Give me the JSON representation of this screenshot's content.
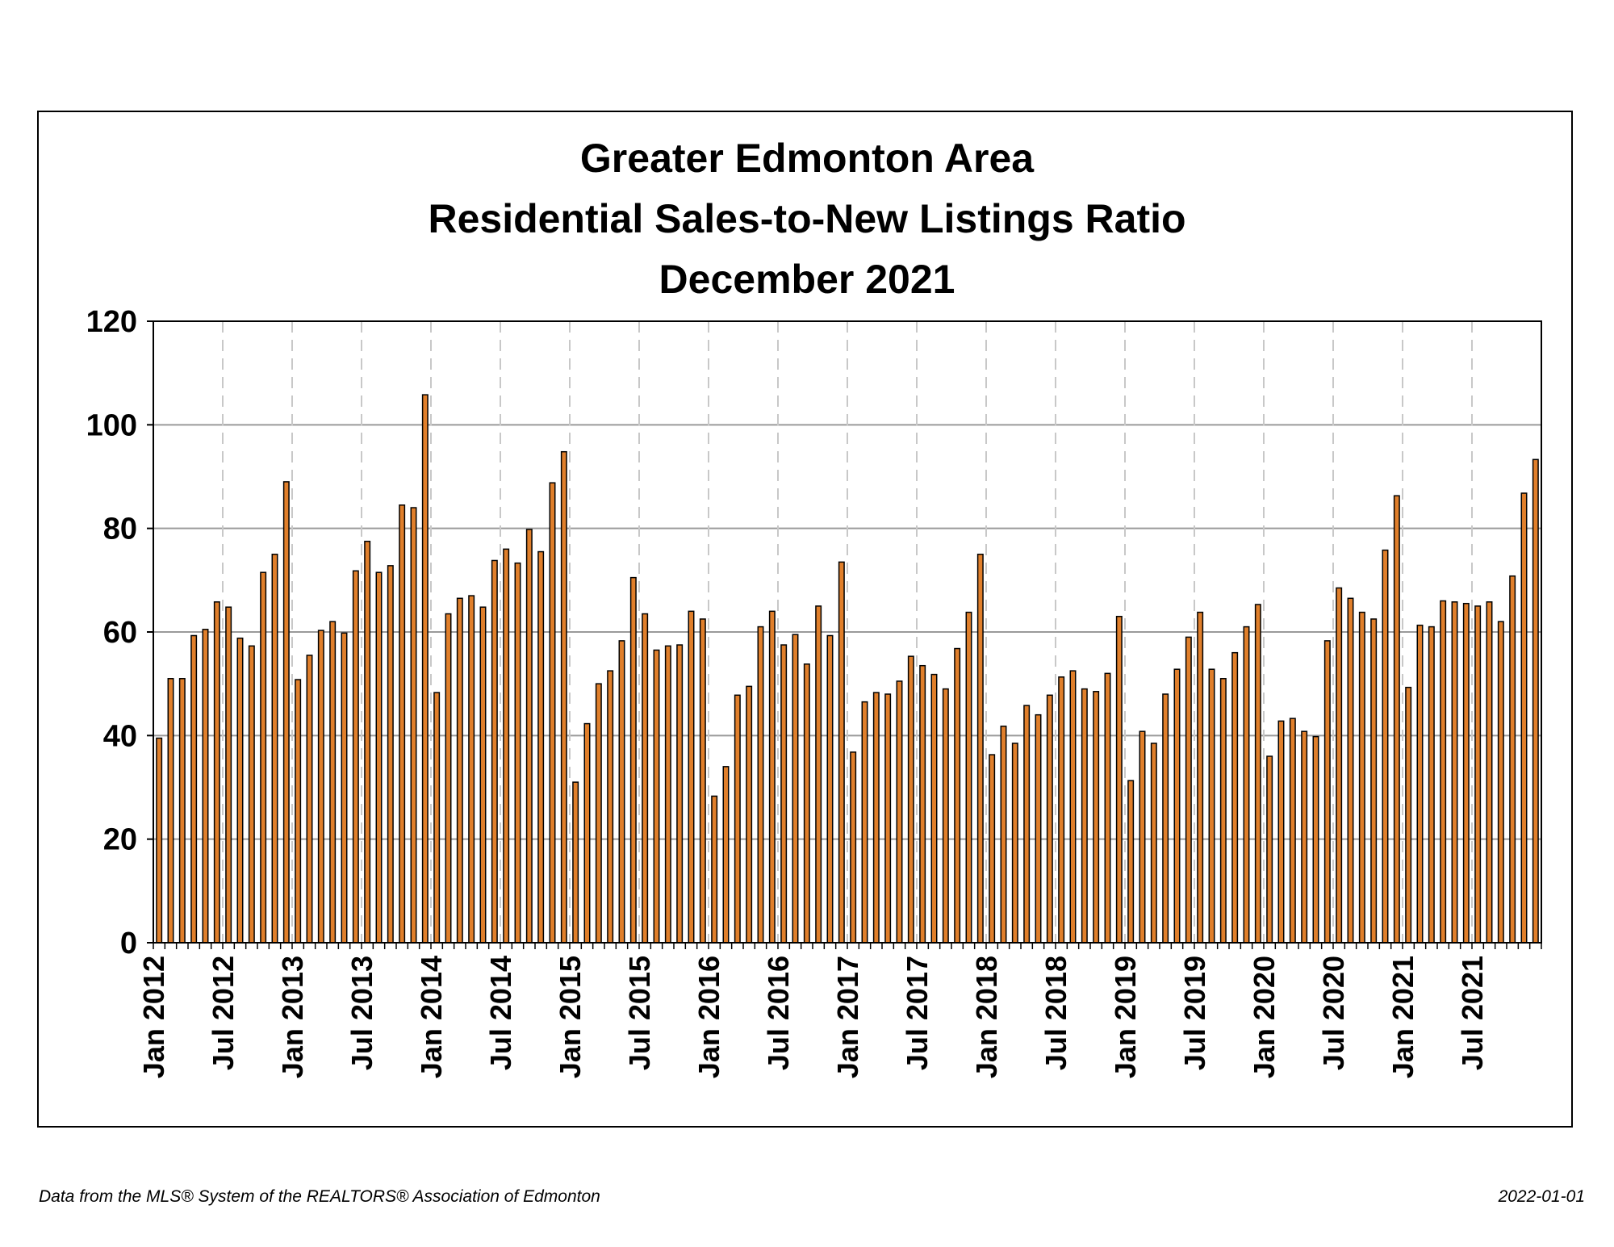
{
  "chart_data": {
    "type": "bar",
    "title": [
      "Greater Edmonton Area",
      "Residential Sales-to-New Listings Ratio",
      "December 2021"
    ],
    "xlabel": "",
    "ylabel": "",
    "ylim": [
      0,
      120
    ],
    "yticks": [
      "0",
      "20",
      "40",
      "60",
      "80",
      "100",
      "120"
    ],
    "grid": {
      "horizontal": true,
      "vertical_dashed": true
    },
    "legend": "none",
    "bar_color": "#E07F2B",
    "bar_edge_color": "#000000",
    "x_start": "Jan 2012",
    "x_tick_labels": [
      "Jan 2012",
      "Jul 2012",
      "Jan 2013",
      "Jul 2013",
      "Jan 2014",
      "Jul 2014",
      "Jan 2015",
      "Jul 2015",
      "Jan 2016",
      "Jul 2016",
      "Jan 2017",
      "Jul 2017",
      "Jan 2018",
      "Jul 2018",
      "Jan 2019",
      "Jul 2019",
      "Jan 2020",
      "Jul 2020",
      "Jan 2021",
      "Jul 2021"
    ],
    "values": [
      39.5,
      51,
      51,
      59.3,
      60.5,
      65.8,
      64.8,
      58.8,
      57.3,
      71.5,
      75,
      89,
      50.8,
      55.5,
      60.3,
      62,
      59.8,
      71.8,
      77.5,
      71.5,
      72.8,
      84.5,
      84,
      105.8,
      48.3,
      63.5,
      66.5,
      67,
      64.8,
      73.8,
      76,
      73.3,
      79.8,
      75.5,
      88.8,
      94.8,
      31,
      42.3,
      50,
      52.5,
      58.3,
      70.5,
      63.5,
      56.5,
      57.3,
      57.5,
      64,
      62.5,
      28.3,
      34,
      47.8,
      49.5,
      61,
      64,
      57.5,
      59.5,
      53.8,
      65,
      59.3,
      73.5,
      36.8,
      46.5,
      48.3,
      48,
      50.5,
      55.3,
      53.5,
      51.8,
      49,
      56.8,
      63.8,
      75,
      36.3,
      41.8,
      38.5,
      45.8,
      44,
      47.8,
      51.3,
      52.5,
      49,
      48.5,
      52,
      63,
      31.3,
      40.8,
      38.5,
      48,
      52.8,
      59,
      63.8,
      52.8,
      51,
      56,
      61,
      65.3,
      36,
      42.8,
      43.3,
      40.8,
      39.8,
      58.3,
      68.5,
      66.5,
      63.8,
      62.5,
      75.8,
      86.3,
      49.3,
      61.3,
      61,
      66,
      65.8,
      65.5,
      65,
      65.8,
      62,
      70.8,
      86.8,
      93.3
    ]
  },
  "footer": {
    "source": "Data from the MLS® System of the REALTORS® Association of Edmonton",
    "date": "2022-01-01"
  }
}
